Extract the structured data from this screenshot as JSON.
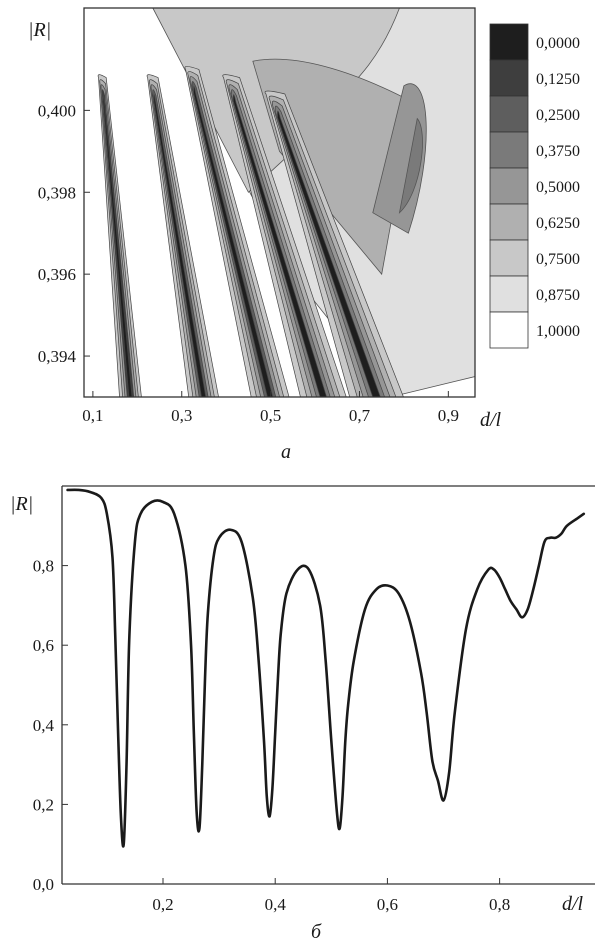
{
  "chart_data": [
    {
      "type": "heatmap",
      "panel_label": "а",
      "xlabel": "d/l",
      "ylabel": "|R|",
      "xlim": [
        0.08,
        0.96
      ],
      "ylim": [
        0.393,
        0.4025
      ],
      "x_ticks": [
        {
          "value": 0.1,
          "label": "0,1"
        },
        {
          "value": 0.3,
          "label": "0,3"
        },
        {
          "value": 0.5,
          "label": "0,5"
        },
        {
          "value": 0.7,
          "label": "0,7"
        },
        {
          "value": 0.9,
          "label": "0,9"
        }
      ],
      "y_ticks": [
        {
          "value": 0.394,
          "label": "0,394"
        },
        {
          "value": 0.396,
          "label": "0,396"
        },
        {
          "value": 0.398,
          "label": "0,398"
        },
        {
          "value": 0.4,
          "label": "0,400"
        }
      ],
      "legend": {
        "placement": "right",
        "levels": [
          "0,0000",
          "0,1250",
          "0,2500",
          "0,3750",
          "0,5000",
          "0,6250",
          "0,7500",
          "0,8750",
          "1,0000"
        ],
        "colors": [
          "#1e1e1e",
          "#3e3e3e",
          "#5e5e5e",
          "#7a7a7a",
          "#969696",
          "#b0b0b0",
          "#c8c8c8",
          "#e0e0e0",
          "#ffffff"
        ]
      },
      "bands": [
        {
          "x_top": 0.125,
          "x_bottom": 0.185,
          "x_top_y": 0.4008,
          "level": 1
        },
        {
          "x_top": 0.24,
          "x_bottom": 0.35,
          "x_top_y": 0.4008,
          "level": 2
        },
        {
          "x_top": 0.33,
          "x_bottom": 0.5,
          "x_top_y": 0.401,
          "level": 2
        },
        {
          "x_top": 0.42,
          "x_bottom": 0.62,
          "x_top_y": 0.4008,
          "level": 3
        },
        {
          "x_top": 0.52,
          "x_bottom": 0.74,
          "x_top_y": 0.4004,
          "level": 3
        }
      ]
    },
    {
      "type": "line",
      "panel_label": "б",
      "xlabel": "d/l",
      "ylabel": "|R|",
      "xlim": [
        0.02,
        0.97
      ],
      "ylim": [
        0.0,
        1.0
      ],
      "x_ticks": [
        {
          "value": 0.2,
          "label": "0,2"
        },
        {
          "value": 0.4,
          "label": "0,4"
        },
        {
          "value": 0.6,
          "label": "0,6"
        },
        {
          "value": 0.8,
          "label": "0,8"
        }
      ],
      "y_ticks": [
        {
          "value": 0.0,
          "label": "0,0"
        },
        {
          "value": 0.2,
          "label": "0,2"
        },
        {
          "value": 0.4,
          "label": "0,4"
        },
        {
          "value": 0.6,
          "label": "0,6"
        },
        {
          "value": 0.8,
          "label": "0,8"
        }
      ],
      "series": [
        {
          "x": [
            0.03,
            0.05,
            0.07,
            0.09,
            0.1,
            0.11,
            0.115,
            0.12,
            0.125,
            0.13,
            0.135,
            0.14,
            0.15,
            0.16,
            0.18,
            0.2,
            0.22,
            0.24,
            0.25,
            0.255,
            0.26,
            0.265,
            0.27,
            0.275,
            0.28,
            0.29,
            0.3,
            0.32,
            0.34,
            0.36,
            0.37,
            0.38,
            0.385,
            0.39,
            0.395,
            0.4,
            0.405,
            0.41,
            0.42,
            0.44,
            0.46,
            0.48,
            0.49,
            0.5,
            0.51,
            0.515,
            0.52,
            0.525,
            0.53,
            0.54,
            0.56,
            0.58,
            0.6,
            0.62,
            0.64,
            0.66,
            0.67,
            0.68,
            0.69,
            0.7,
            0.71,
            0.72,
            0.74,
            0.76,
            0.78,
            0.79,
            0.8,
            0.81,
            0.82,
            0.83,
            0.84,
            0.85,
            0.86,
            0.87,
            0.88,
            0.89,
            0.9,
            0.91,
            0.92,
            0.94,
            0.95
          ],
          "y": [
            0.99,
            0.99,
            0.985,
            0.97,
            0.93,
            0.82,
            0.62,
            0.38,
            0.17,
            0.1,
            0.3,
            0.62,
            0.86,
            0.93,
            0.96,
            0.96,
            0.93,
            0.8,
            0.6,
            0.38,
            0.18,
            0.14,
            0.3,
            0.52,
            0.68,
            0.82,
            0.87,
            0.89,
            0.86,
            0.72,
            0.57,
            0.36,
            0.22,
            0.17,
            0.24,
            0.38,
            0.52,
            0.63,
            0.73,
            0.79,
            0.79,
            0.7,
            0.56,
            0.36,
            0.18,
            0.14,
            0.22,
            0.36,
            0.45,
            0.56,
            0.69,
            0.74,
            0.75,
            0.73,
            0.66,
            0.53,
            0.43,
            0.31,
            0.26,
            0.21,
            0.28,
            0.43,
            0.64,
            0.74,
            0.79,
            0.79,
            0.77,
            0.74,
            0.71,
            0.69,
            0.67,
            0.69,
            0.74,
            0.8,
            0.86,
            0.87,
            0.87,
            0.88,
            0.9,
            0.92,
            0.93
          ]
        }
      ]
    }
  ]
}
